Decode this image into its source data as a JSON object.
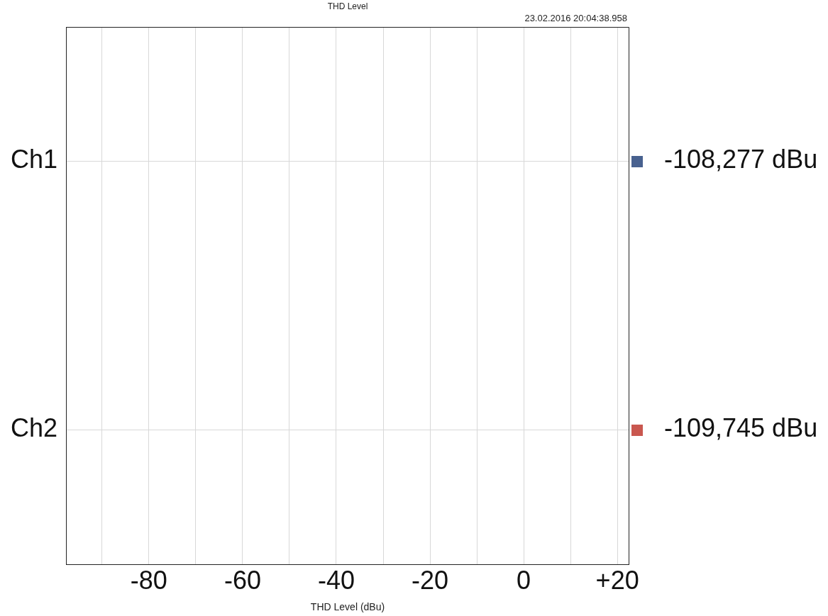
{
  "chart_data": {
    "type": "bar",
    "orientation": "horizontal",
    "title": "THD Level",
    "xlabel": "THD Level (dBu)",
    "annotations": [
      "23.02.2016 20:04:38.958"
    ],
    "categories": [
      "Ch1",
      "Ch2"
    ],
    "values": [
      null,
      null
    ],
    "colors": [
      "#48618f",
      "#c9574f"
    ],
    "value_labels": [
      "-108,277 dBu",
      "-109,745 dBu"
    ],
    "xlim": [
      -97.7,
      22.4
    ],
    "xticks": [
      {
        "value": -90,
        "label": null
      },
      -80,
      {
        "value": -70,
        "label": null
      },
      -60,
      {
        "value": -50,
        "label": null
      },
      -40,
      {
        "value": -30,
        "label": null
      },
      -20,
      {
        "value": -10,
        "label": null
      },
      0,
      {
        "value": 10,
        "label": null
      },
      {
        "value": 20,
        "label": "+20"
      }
    ],
    "grid": true,
    "legend": false
  }
}
